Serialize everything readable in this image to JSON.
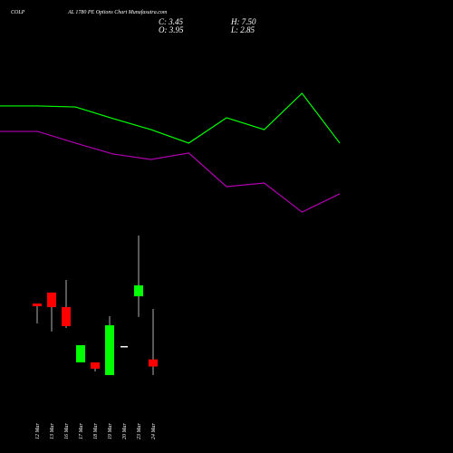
{
  "chart_data": [
    {
      "type": "candlestick",
      "title_left": "COLP",
      "title": "AL 1780 PE Options Chart Munafasutra.com",
      "ohlc_labels": {
        "close": "C: 3.45",
        "high": "H: 7.50",
        "open": "O: 3.95",
        "low": "L: 2.85"
      },
      "categories": [
        "12 Mar",
        "13 Mar",
        "16 Mar",
        "17 Mar",
        "18 Mar",
        "19 Mar",
        "20 Mar",
        "23 Mar",
        "24 Mar"
      ],
      "open": [
        7.88,
        8.65,
        7.63,
        3.74,
        3.74,
        2.85,
        4.89,
        8.39,
        3.95
      ],
      "high": [
        7.88,
        8.65,
        9.54,
        4.95,
        3.74,
        6.99,
        4.89,
        12.66,
        7.5
      ],
      "low": [
        6.48,
        5.91,
        6.16,
        3.74,
        3.1,
        2.85,
        4.89,
        6.93,
        2.85
      ],
      "close": [
        7.69,
        7.63,
        6.29,
        4.95,
        3.3,
        6.35,
        4.89,
        9.16,
        3.45
      ],
      "up_color": "#00ff00",
      "down_color": "#ff0000",
      "flat_color": "#ffffff",
      "ylim": [
        -2.63,
        29.22
      ]
    },
    {
      "type": "line",
      "x": [
        0,
        1,
        2,
        3,
        4,
        5,
        6,
        7,
        8,
        9
      ],
      "xlim": [
        0,
        12
      ],
      "ylim": [
        -2.63,
        29.22
      ],
      "series": [
        {
          "color": "#00ff00",
          "values": [
            21.77,
            21.77,
            21.7,
            20.88,
            20.11,
            19.16,
            20.94,
            20.11,
            22.66,
            19.16
          ]
        },
        {
          "color": "#b000b0",
          "values": [
            19.98,
            19.98,
            19.16,
            18.39,
            18.01,
            18.46,
            16.1,
            16.35,
            14.31,
            15.59
          ]
        }
      ]
    }
  ]
}
